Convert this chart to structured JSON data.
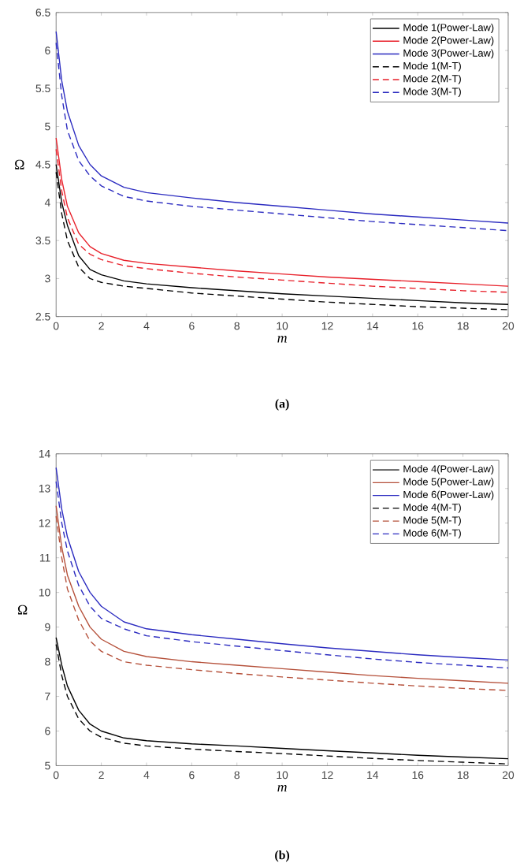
{
  "chart_data": [
    {
      "type": "line",
      "xlabel": "m",
      "ylabel": "Ω",
      "annotations": [
        "(a)"
      ],
      "legend": "top right",
      "grid": false,
      "x": [
        0,
        0.25,
        0.5,
        1,
        1.5,
        2,
        3,
        4,
        6,
        8,
        10,
        12,
        14,
        16,
        18,
        20
      ],
      "xlim": [
        0,
        20
      ],
      "ylim": [
        2.5,
        6.5
      ],
      "xticks": [
        0,
        2,
        4,
        6,
        8,
        10,
        12,
        14,
        16,
        18,
        20
      ],
      "yticks": [
        2.5,
        3,
        3.5,
        4,
        4.5,
        5,
        5.5,
        6,
        6.5
      ],
      "series": [
        {
          "name": "Mode 1(Power-Law)",
          "color": "#000000",
          "line_style": "solid",
          "values": [
            4.5,
            4.0,
            3.7,
            3.3,
            3.12,
            3.05,
            2.97,
            2.93,
            2.88,
            2.84,
            2.8,
            2.77,
            2.74,
            2.71,
            2.68,
            2.66
          ]
        },
        {
          "name": "Mode 2(Power-Law)",
          "color": "#e8202a",
          "line_style": "solid",
          "values": [
            4.85,
            4.3,
            3.95,
            3.6,
            3.42,
            3.33,
            3.24,
            3.2,
            3.15,
            3.1,
            3.06,
            3.02,
            2.99,
            2.96,
            2.93,
            2.9
          ]
        },
        {
          "name": "Mode 3(Power-Law)",
          "color": "#2b2bc0",
          "line_style": "solid",
          "values": [
            6.25,
            5.6,
            5.2,
            4.75,
            4.5,
            4.35,
            4.2,
            4.13,
            4.06,
            4.0,
            3.95,
            3.9,
            3.85,
            3.81,
            3.77,
            3.73
          ]
        },
        {
          "name": "Mode 1(M-T)",
          "color": "#000000",
          "line_style": "dashed",
          "values": [
            4.4,
            3.85,
            3.5,
            3.15,
            3.0,
            2.95,
            2.9,
            2.87,
            2.81,
            2.77,
            2.73,
            2.69,
            2.66,
            2.63,
            2.61,
            2.59
          ]
        },
        {
          "name": "Mode 2(M-T)",
          "color": "#e8202a",
          "line_style": "dashed",
          "values": [
            4.7,
            4.15,
            3.8,
            3.45,
            3.32,
            3.25,
            3.17,
            3.13,
            3.07,
            3.02,
            2.98,
            2.94,
            2.9,
            2.87,
            2.84,
            2.82
          ]
        },
        {
          "name": "Mode 3(M-T)",
          "color": "#2b2bc0",
          "line_style": "dashed",
          "values": [
            6.1,
            5.4,
            4.95,
            4.55,
            4.35,
            4.22,
            4.08,
            4.02,
            3.95,
            3.9,
            3.85,
            3.8,
            3.75,
            3.71,
            3.67,
            3.63
          ]
        }
      ]
    },
    {
      "type": "line",
      "xlabel": "m",
      "ylabel": "Ω",
      "annotations": [
        "(b)"
      ],
      "legend": "top right",
      "grid": false,
      "x": [
        0,
        0.25,
        0.5,
        1,
        1.5,
        2,
        3,
        4,
        6,
        8,
        10,
        12,
        14,
        16,
        18,
        20
      ],
      "xlim": [
        0,
        20
      ],
      "ylim": [
        5,
        14
      ],
      "xticks": [
        0,
        2,
        4,
        6,
        8,
        10,
        12,
        14,
        16,
        18,
        20
      ],
      "yticks": [
        5,
        6,
        7,
        8,
        9,
        10,
        11,
        12,
        13,
        14
      ],
      "series": [
        {
          "name": "Mode 4(Power-Law)",
          "color": "#000000",
          "line_style": "solid",
          "values": [
            8.7,
            7.9,
            7.3,
            6.6,
            6.2,
            6.0,
            5.8,
            5.72,
            5.63,
            5.57,
            5.5,
            5.43,
            5.37,
            5.3,
            5.25,
            5.2
          ]
        },
        {
          "name": "Mode 5(Power-Law)",
          "color": "#b5503a",
          "line_style": "solid",
          "values": [
            12.5,
            11.3,
            10.5,
            9.6,
            9.0,
            8.65,
            8.3,
            8.15,
            8.0,
            7.9,
            7.8,
            7.7,
            7.6,
            7.52,
            7.45,
            7.38
          ]
        },
        {
          "name": "Mode 6(Power-Law)",
          "color": "#2b2bc0",
          "line_style": "solid",
          "values": [
            13.6,
            12.4,
            11.6,
            10.6,
            10.0,
            9.6,
            9.15,
            8.95,
            8.78,
            8.65,
            8.52,
            8.4,
            8.3,
            8.2,
            8.12,
            8.05
          ]
        },
        {
          "name": "Mode 4(M-T)",
          "color": "#000000",
          "line_style": "dashed",
          "values": [
            8.5,
            7.6,
            7.0,
            6.35,
            6.0,
            5.82,
            5.65,
            5.57,
            5.48,
            5.41,
            5.35,
            5.28,
            5.21,
            5.15,
            5.1,
            5.05
          ]
        },
        {
          "name": "Mode 5(M-T)",
          "color": "#b5503a",
          "line_style": "dashed",
          "values": [
            12.2,
            11.0,
            10.1,
            9.2,
            8.6,
            8.3,
            8.0,
            7.9,
            7.77,
            7.66,
            7.56,
            7.47,
            7.38,
            7.3,
            7.23,
            7.17
          ]
        },
        {
          "name": "Mode 6(M-T)",
          "color": "#2b2bc0",
          "line_style": "dashed",
          "values": [
            13.2,
            12.0,
            11.2,
            10.2,
            9.6,
            9.25,
            8.95,
            8.75,
            8.58,
            8.45,
            8.32,
            8.2,
            8.08,
            7.98,
            7.9,
            7.82
          ]
        }
      ]
    }
  ]
}
